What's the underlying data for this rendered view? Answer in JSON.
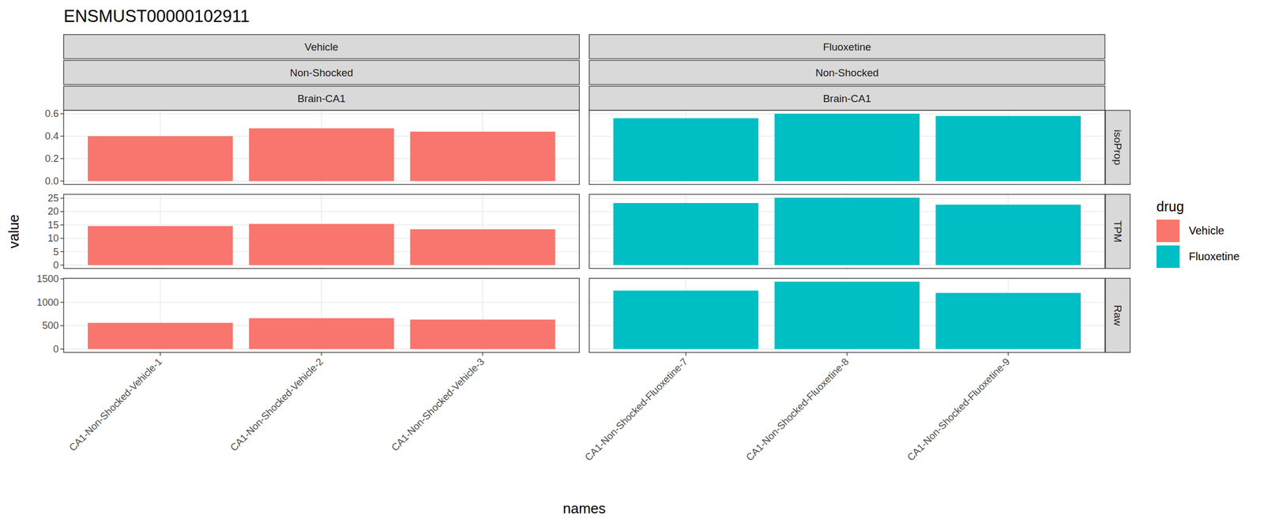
{
  "chart_data": {
    "type": "bar",
    "title": "ENSMUST00000102911",
    "x_label": "names",
    "y_label": "value",
    "legend_title": "drug",
    "legend": "right",
    "grid": true,
    "columns": [
      {
        "strips": [
          "Vehicle",
          "Non-Shocked",
          "Brain-CA1"
        ],
        "categories": [
          "CA1-Non-Shocked-Vehicle-1",
          "CA1-Non-Shocked-Vehicle-2",
          "CA1-Non-Shocked-Vehicle-3"
        ]
      },
      {
        "strips": [
          "Fluoxetine",
          "Non-Shocked",
          "Brain-CA1"
        ],
        "categories": [
          "CA1-Non-Shocked-Fluoxetine-7",
          "CA1-Non-Shocked-Fluoxetine-8",
          "CA1-Non-Shocked-Fluoxetine-9"
        ]
      }
    ],
    "rows": [
      {
        "strip": "isoProp",
        "ylim": [
          -0.03,
          0.63
        ],
        "yticks": [
          {
            "value": 0,
            "label": "0.0"
          },
          {
            "value": 0.2,
            "label": "0.2"
          },
          {
            "value": 0.4,
            "label": "0.4"
          },
          {
            "value": 0.6,
            "label": "0.6"
          }
        ]
      },
      {
        "strip": "TPM",
        "ylim": [
          -1.26,
          26.46
        ],
        "yticks": [
          0,
          5,
          10,
          15,
          20,
          25
        ]
      },
      {
        "strip": "Raw",
        "ylim": [
          -72,
          1512
        ],
        "yticks": [
          0,
          500,
          1000,
          1500
        ]
      }
    ],
    "series": [
      {
        "name": "Vehicle",
        "color": "#F8766D",
        "values": [
          [
            0.4,
            0.47,
            0.44
          ],
          [
            14.6,
            15.4,
            13.4
          ],
          [
            560,
            660,
            630
          ]
        ]
      },
      {
        "name": "Fluoxetine",
        "color": "#00BFC4",
        "values": [
          [
            0.56,
            0.6,
            0.58
          ],
          [
            23.2,
            25.2,
            22.6
          ],
          [
            1250,
            1440,
            1200
          ]
        ]
      }
    ]
  }
}
